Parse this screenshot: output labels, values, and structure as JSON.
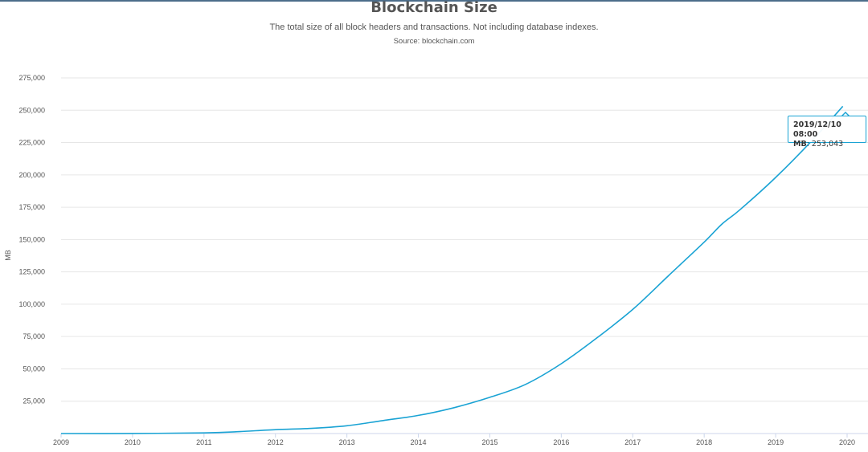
{
  "chart_data": {
    "type": "line",
    "title": "Blockchain Size",
    "subtitle": "The total size of all block headers and transactions. Not including database indexes.",
    "source": "Source: blockchain.com",
    "ylabel": "MB",
    "xlabel": "",
    "ylim": [
      0,
      275000
    ],
    "xlim": [
      2009,
      2020
    ],
    "grid": true,
    "line_color": "#1aa3d4",
    "x_ticks": [
      "2009",
      "2010",
      "2011",
      "2012",
      "2013",
      "2014",
      "2015",
      "2016",
      "2017",
      "2018",
      "2019",
      "2020"
    ],
    "y_ticks": [
      "25,000",
      "50,000",
      "75,000",
      "100,000",
      "125,000",
      "150,000",
      "175,000",
      "200,000",
      "225,000",
      "250,000",
      "275,000"
    ],
    "series": [
      {
        "x": [
          2009.0,
          2010.0,
          2011.0,
          2011.5,
          2012.0,
          2012.5,
          2013.0,
          2013.5,
          2014.0,
          2014.5,
          2015.0,
          2015.5,
          2016.0,
          2016.5,
          2017.0,
          2017.5,
          2018.0,
          2018.25,
          2018.5,
          2019.0,
          2019.5,
          2019.94
        ],
        "y": [
          0,
          50,
          500,
          1500,
          3000,
          4000,
          6000,
          10000,
          14000,
          20000,
          28000,
          38000,
          54000,
          74000,
          96000,
          122000,
          148000,
          162000,
          173000,
          198000,
          226000,
          253043
        ]
      }
    ],
    "tooltip": {
      "date": "2019/12/10 08:00",
      "label": "MB",
      "value": ": 253,043"
    }
  }
}
